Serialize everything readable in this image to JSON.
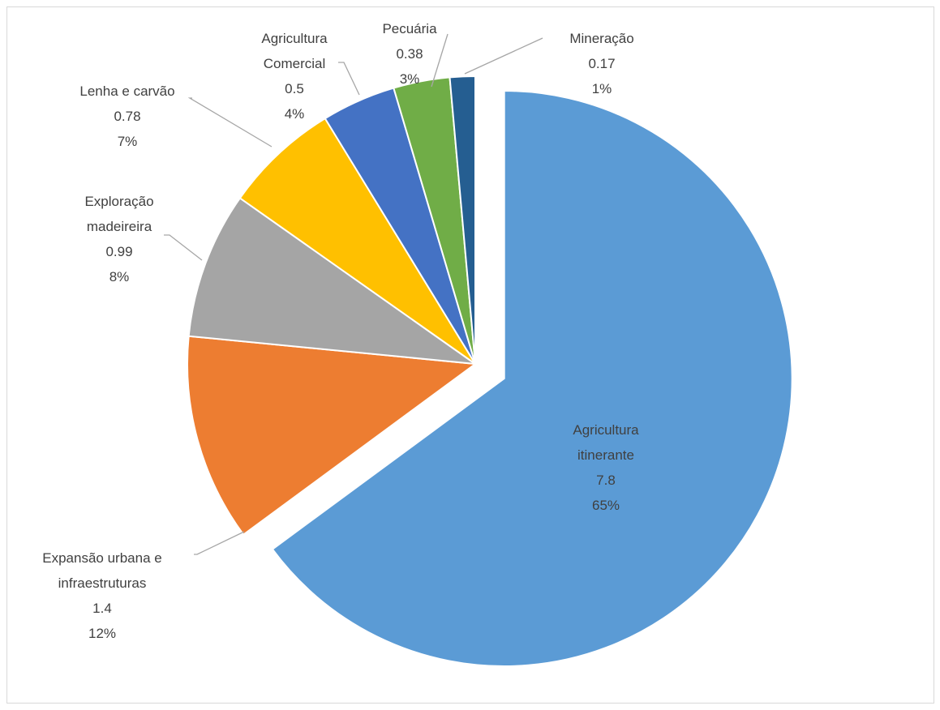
{
  "chart_data": {
    "type": "pie",
    "title": "",
    "start_angle_deg": 0,
    "direction": "clockwise",
    "slices": [
      {
        "name": "Agricultura itinerante",
        "name_lines": [
          "Agricultura",
          "itinerante"
        ],
        "value": "7.8",
        "percent": "65%",
        "v": 7.8,
        "color": "#5b9bd5",
        "exploded": true
      },
      {
        "name": "Expansão urbana e infraestruturas",
        "name_lines": [
          "Expansão urbana e",
          "infraestruturas"
        ],
        "value": "1.4",
        "percent": "12%",
        "v": 1.4,
        "color": "#ed7d31",
        "exploded": false
      },
      {
        "name": "Exploração madeireira",
        "name_lines": [
          "Exploração",
          "madeireira"
        ],
        "value": "0.99",
        "percent": "8%",
        "v": 0.99,
        "color": "#a5a5a5",
        "exploded": false
      },
      {
        "name": "Lenha e carvão",
        "name_lines": [
          "Lenha e carvão"
        ],
        "value": "0.78",
        "percent": "7%",
        "v": 0.78,
        "color": "#ffc000",
        "exploded": false
      },
      {
        "name": "Agricultura Comercial",
        "name_lines": [
          "Agricultura",
          "Comercial"
        ],
        "value": "0.5",
        "percent": "4%",
        "v": 0.5,
        "color": "#4472c4",
        "exploded": false
      },
      {
        "name": "Pecuária",
        "name_lines": [
          "Pecuária"
        ],
        "value": "0.38",
        "percent": "3%",
        "v": 0.38,
        "color": "#70ad47",
        "exploded": false
      },
      {
        "name": "Mineração",
        "name_lines": [
          "Mineração"
        ],
        "value": "0.17",
        "percent": "1%",
        "v": 0.17,
        "color": "#255e91",
        "exploded": false
      }
    ],
    "legend": "none",
    "data_labels": "category, value, percentage"
  }
}
